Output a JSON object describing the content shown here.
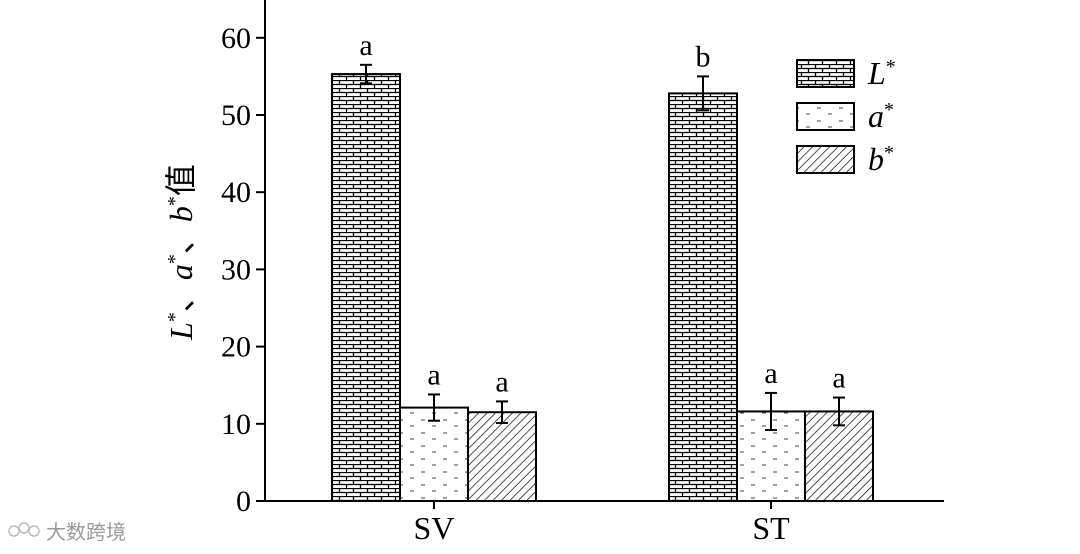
{
  "chart_data": {
    "type": "bar",
    "categories": [
      "SV",
      "ST"
    ],
    "series": [
      {
        "name": "L*",
        "values": [
          55.3,
          52.8
        ],
        "errors": [
          1.2,
          2.2
        ],
        "letters": [
          "a",
          "b"
        ],
        "pattern": "brick"
      },
      {
        "name": "a*",
        "values": [
          12.1,
          11.6
        ],
        "errors": [
          1.7,
          2.4
        ],
        "letters": [
          "a",
          "a"
        ],
        "pattern": "dash"
      },
      {
        "name": "b*",
        "values": [
          11.5,
          11.6
        ],
        "errors": [
          1.4,
          1.8
        ],
        "letters": [
          "a",
          "a"
        ],
        "pattern": "hatch"
      }
    ],
    "ylim": [
      0,
      65
    ],
    "yticks": [
      0,
      10,
      20,
      30,
      40,
      50,
      60
    ],
    "ylabel": "L*、a*、b*值",
    "legend_position": "top-right",
    "grid": false
  },
  "watermark": "大数跨境"
}
